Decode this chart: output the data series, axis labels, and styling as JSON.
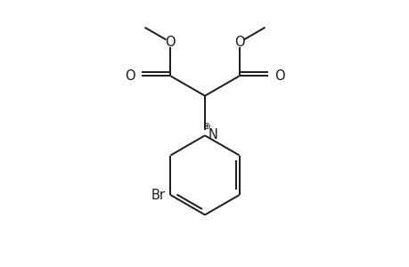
{
  "bg_color": "#ffffff",
  "line_color": "#1a1a1a",
  "line_width": 1.4,
  "font_size": 10.5,
  "xlim": [
    -3.8,
    3.8
  ],
  "ylim": [
    -3.5,
    3.2
  ],
  "figsize": [
    4.6,
    3.0
  ],
  "dpi": 100
}
